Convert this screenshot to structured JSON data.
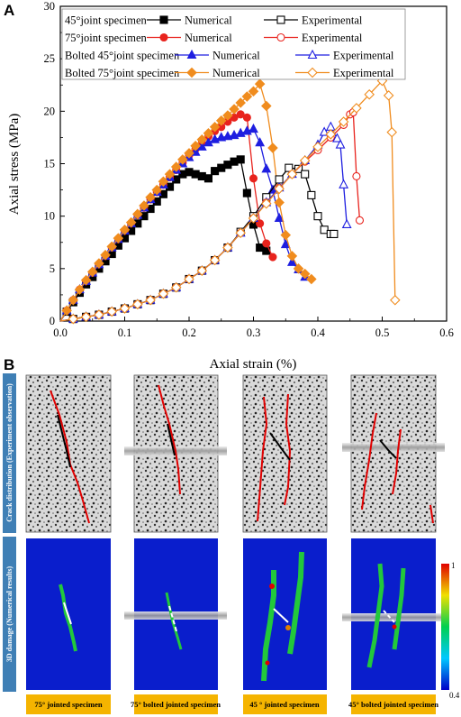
{
  "panel_a_letter": "A",
  "panel_b_letter": "B",
  "chart_data": {
    "type": "line",
    "xlabel": "Axial strain (%)",
    "ylabel": "Axial stress (MPa)",
    "xlim": [
      0,
      0.6
    ],
    "ylim": [
      0,
      30
    ],
    "xticks": [
      "0.0",
      "0.1",
      "0.2",
      "0.3",
      "0.4",
      "0.5",
      "0.6"
    ],
    "yticks": [
      "0",
      "5",
      "10",
      "15",
      "20",
      "25",
      "30"
    ],
    "grid": false,
    "legend_position": "top-left",
    "legend_groups": [
      {
        "label": "45°joint specimen",
        "numerical": "Numerical",
        "experimental": "Experimental"
      },
      {
        "label": "75°joint specimen",
        "numerical": "Numerical",
        "experimental": "Experimental"
      },
      {
        "label": "Bolted 45°joint specimen",
        "numerical": "Numerical",
        "experimental": "Experimental"
      },
      {
        "label": "Bolted 75°joint specimen",
        "numerical": "Numerical",
        "experimental": "Experimental"
      }
    ],
    "series": [
      {
        "name": "45°joint specimen Numerical",
        "color": "#000000",
        "marker": "square",
        "filled": true,
        "x": [
          0,
          0.01,
          0.02,
          0.03,
          0.04,
          0.05,
          0.06,
          0.07,
          0.08,
          0.09,
          0.1,
          0.11,
          0.12,
          0.13,
          0.14,
          0.15,
          0.16,
          0.17,
          0.18,
          0.19,
          0.2,
          0.21,
          0.22,
          0.23,
          0.24,
          0.25,
          0.26,
          0.27,
          0.28,
          0.29,
          0.3,
          0.31,
          0.32
        ],
        "y": [
          0,
          0.9,
          1.8,
          2.7,
          3.5,
          4.2,
          5.0,
          5.7,
          6.4,
          7.2,
          7.9,
          8.6,
          9.3,
          10.0,
          10.7,
          11.4,
          12.1,
          12.8,
          13.5,
          14.0,
          14.2,
          14.0,
          13.8,
          13.6,
          14.3,
          14.6,
          14.9,
          15.2,
          15.4,
          12.2,
          9.2,
          7.0,
          6.7
        ]
      },
      {
        "name": "75°joint specimen Numerical",
        "color": "#e8231d",
        "marker": "circle",
        "filled": true,
        "x": [
          0,
          0.01,
          0.02,
          0.03,
          0.04,
          0.05,
          0.06,
          0.07,
          0.08,
          0.09,
          0.1,
          0.11,
          0.12,
          0.13,
          0.14,
          0.15,
          0.16,
          0.17,
          0.18,
          0.19,
          0.2,
          0.21,
          0.22,
          0.23,
          0.24,
          0.25,
          0.26,
          0.27,
          0.28,
          0.29,
          0.3,
          0.31,
          0.32,
          0.33
        ],
        "y": [
          0,
          1.0,
          2.0,
          3.0,
          3.8,
          4.6,
          5.4,
          6.2,
          7.0,
          7.8,
          8.6,
          9.3,
          10.1,
          10.8,
          11.6,
          12.3,
          13.0,
          13.7,
          14.4,
          15.1,
          15.8,
          16.4,
          17.0,
          17.6,
          18.1,
          18.5,
          19.0,
          19.4,
          19.7,
          19.4,
          13.6,
          9.3,
          7.4,
          6.1
        ]
      },
      {
        "name": "Bolted 45°joint specimen Numerical",
        "color": "#1e1ee0",
        "marker": "triangle",
        "filled": true,
        "x": [
          0,
          0.01,
          0.02,
          0.03,
          0.04,
          0.05,
          0.06,
          0.07,
          0.08,
          0.09,
          0.1,
          0.11,
          0.12,
          0.13,
          0.14,
          0.15,
          0.16,
          0.17,
          0.18,
          0.19,
          0.2,
          0.21,
          0.22,
          0.23,
          0.24,
          0.25,
          0.26,
          0.27,
          0.28,
          0.29,
          0.3,
          0.31,
          0.32,
          0.33,
          0.34,
          0.35,
          0.36,
          0.37,
          0.38
        ],
        "y": [
          0,
          1.0,
          2.0,
          3.0,
          3.8,
          4.6,
          5.4,
          6.2,
          7.0,
          7.8,
          8.6,
          9.3,
          10.1,
          10.8,
          11.6,
          12.3,
          13.0,
          13.7,
          14.4,
          15.0,
          15.6,
          16.1,
          16.6,
          17.0,
          17.3,
          17.5,
          17.6,
          17.7,
          17.9,
          18.1,
          18.3,
          17.0,
          14.5,
          12.5,
          9.8,
          7.3,
          5.6,
          4.9,
          4.2
        ]
      },
      {
        "name": "Bolted 75°joint specimen Numerical",
        "color": "#f08c1e",
        "marker": "diamond",
        "filled": true,
        "x": [
          0,
          0.01,
          0.02,
          0.03,
          0.04,
          0.05,
          0.06,
          0.07,
          0.08,
          0.09,
          0.1,
          0.11,
          0.12,
          0.13,
          0.14,
          0.15,
          0.16,
          0.17,
          0.18,
          0.19,
          0.2,
          0.21,
          0.22,
          0.23,
          0.24,
          0.25,
          0.26,
          0.27,
          0.28,
          0.29,
          0.3,
          0.31,
          0.32,
          0.33,
          0.34,
          0.35,
          0.36,
          0.37,
          0.38,
          0.39
        ],
        "y": [
          0,
          1.0,
          2.0,
          3.0,
          3.9,
          4.7,
          5.5,
          6.3,
          7.1,
          7.9,
          8.7,
          9.4,
          10.2,
          11.0,
          11.8,
          12.5,
          13.3,
          14.0,
          14.7,
          15.4,
          16.0,
          16.7,
          17.3,
          17.9,
          18.5,
          19.1,
          19.6,
          20.2,
          20.8,
          21.4,
          21.9,
          22.6,
          20.5,
          16.5,
          11.3,
          8.2,
          6.2,
          5.0,
          4.5,
          4.0
        ]
      },
      {
        "name": "45°joint specimen Experimental",
        "color": "#000000",
        "marker": "square",
        "filled": false,
        "x": [
          0,
          0.02,
          0.04,
          0.06,
          0.08,
          0.1,
          0.12,
          0.14,
          0.16,
          0.18,
          0.2,
          0.22,
          0.24,
          0.26,
          0.28,
          0.3,
          0.32,
          0.34,
          0.355,
          0.37,
          0.38,
          0.39,
          0.4,
          0.41,
          0.42,
          0.425
        ],
        "y": [
          0,
          0.2,
          0.4,
          0.6,
          0.9,
          1.2,
          1.6,
          2.0,
          2.6,
          3.2,
          4.0,
          4.8,
          5.8,
          7.0,
          8.5,
          10.0,
          11.8,
          13.5,
          14.6,
          14.5,
          14.0,
          12.0,
          10.0,
          8.7,
          8.3,
          8.3
        ]
      },
      {
        "name": "75°joint specimen Experimental",
        "color": "#e8231d",
        "marker": "circle",
        "filled": false,
        "x": [
          0,
          0.02,
          0.04,
          0.06,
          0.08,
          0.1,
          0.12,
          0.14,
          0.16,
          0.18,
          0.2,
          0.22,
          0.24,
          0.26,
          0.28,
          0.3,
          0.32,
          0.34,
          0.36,
          0.38,
          0.4,
          0.42,
          0.44,
          0.45,
          0.455,
          0.46,
          0.465
        ],
        "y": [
          0,
          0.2,
          0.4,
          0.6,
          0.9,
          1.2,
          1.6,
          2.0,
          2.6,
          3.2,
          4.0,
          4.8,
          5.8,
          7.0,
          8.4,
          9.8,
          11.3,
          12.7,
          14.0,
          15.2,
          16.3,
          17.5,
          18.7,
          19.7,
          19.9,
          13.8,
          9.6
        ]
      },
      {
        "name": "Bolted 45°joint specimen Experimental",
        "color": "#1e1ee0",
        "marker": "triangle",
        "filled": false,
        "x": [
          0,
          0.02,
          0.04,
          0.06,
          0.08,
          0.1,
          0.12,
          0.14,
          0.16,
          0.18,
          0.2,
          0.22,
          0.24,
          0.26,
          0.28,
          0.3,
          0.32,
          0.34,
          0.36,
          0.38,
          0.4,
          0.41,
          0.42,
          0.43,
          0.435,
          0.44,
          0.445
        ],
        "y": [
          0,
          0.2,
          0.4,
          0.6,
          0.9,
          1.2,
          1.6,
          2.0,
          2.6,
          3.2,
          4.0,
          4.8,
          5.8,
          7.0,
          8.4,
          9.8,
          11.3,
          12.7,
          14.0,
          15.3,
          16.8,
          18.0,
          18.5,
          17.4,
          16.8,
          13.0,
          9.2
        ]
      },
      {
        "name": "Bolted 75°joint specimen Experimental",
        "color": "#f08c1e",
        "marker": "diamond",
        "filled": false,
        "x": [
          0,
          0.02,
          0.04,
          0.06,
          0.08,
          0.1,
          0.12,
          0.14,
          0.16,
          0.18,
          0.2,
          0.22,
          0.24,
          0.26,
          0.28,
          0.3,
          0.32,
          0.34,
          0.36,
          0.38,
          0.4,
          0.42,
          0.44,
          0.46,
          0.48,
          0.5,
          0.51,
          0.515,
          0.52
        ],
        "y": [
          0,
          0.2,
          0.4,
          0.6,
          0.9,
          1.2,
          1.6,
          2.0,
          2.6,
          3.2,
          4.0,
          4.8,
          5.8,
          7.0,
          8.4,
          9.8,
          11.2,
          12.6,
          14.0,
          15.3,
          16.6,
          17.8,
          19.0,
          20.3,
          21.6,
          22.9,
          21.5,
          18.0,
          2.0
        ]
      }
    ]
  },
  "panel_b": {
    "row_labels": [
      "Crack distribution (Experiment observation)",
      "3D damage (Numerical results)"
    ],
    "captions": [
      "75° jointed specimen",
      "75° bolted jointed specimen",
      "45 ° jointed specimen",
      "45° bolted jointed specimen"
    ],
    "colorbar": {
      "max": "1",
      "min": "0.4"
    }
  }
}
